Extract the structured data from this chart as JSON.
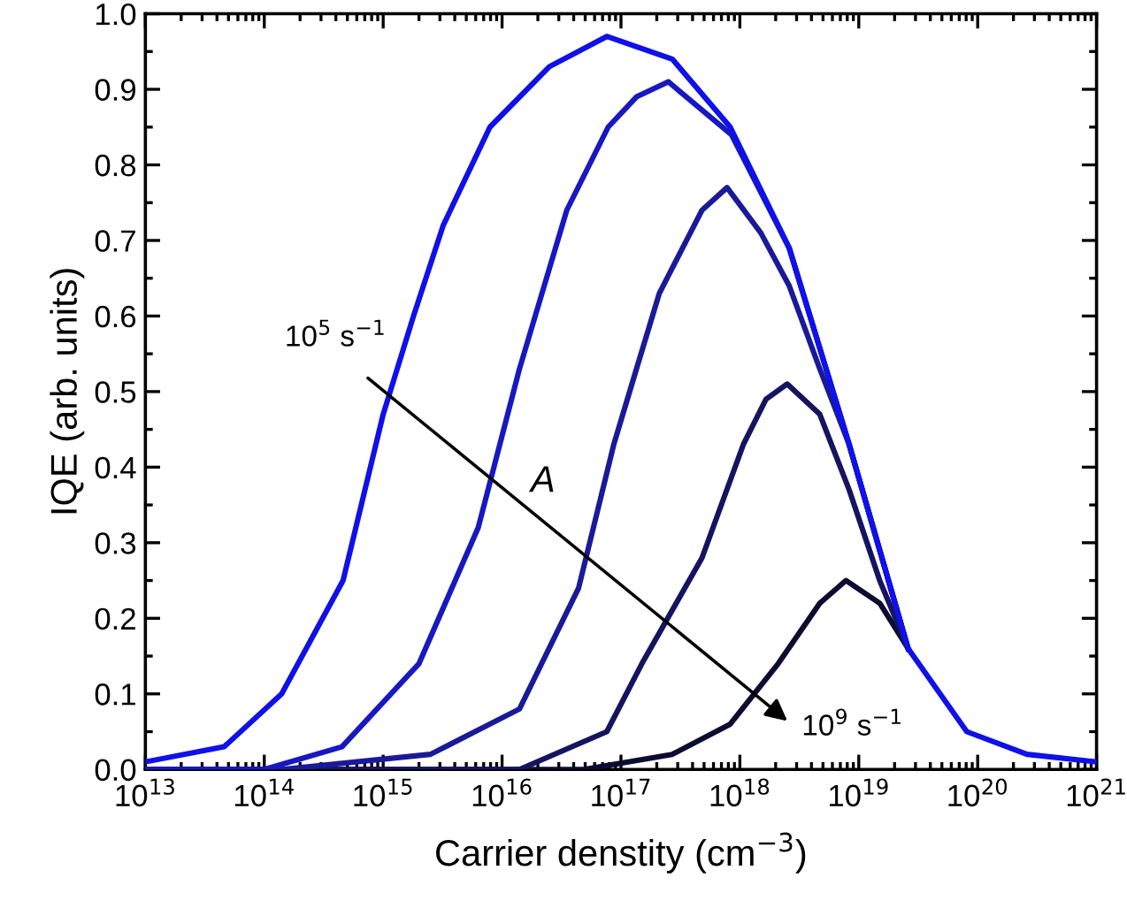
{
  "chart_data": {
    "type": "line",
    "xlabel": "Carrier denstity (cm$^{−3}$)",
    "ylabel": "IQE (arb. units)",
    "log": "x",
    "grid": false,
    "legend": false,
    "marker": "none",
    "line_style": "solid",
    "xlim": [
      10000000000000.0,
      1e+21
    ],
    "xticks": [
      {
        "value": 10000000000000.0,
        "label": "10$^{13}$"
      },
      {
        "value": 100000000000000.0,
        "label": "10$^{14}$"
      },
      {
        "value": 1000000000000000.0,
        "label": "10$^{15}$"
      },
      {
        "value": 1e+16,
        "label": "10$^{16}$"
      },
      {
        "value": 1e+17,
        "label": "10$^{17}$"
      },
      {
        "value": 1e+18,
        "label": "10$^{18}$"
      },
      {
        "value": 1e+19,
        "label": "10$^{19}$"
      },
      {
        "value": 1e+20,
        "label": "10$^{20}$"
      },
      {
        "value": 1e+21,
        "label": "10$^{21}$"
      }
    ],
    "ylim": [
      0,
      1.0
    ],
    "yticks": [
      {
        "value": 0,
        "label": "0.0"
      },
      {
        "value": 0.1,
        "label": "0.1"
      },
      {
        "value": 0.2,
        "label": "0.2"
      },
      {
        "value": 0.3,
        "label": "0.3"
      },
      {
        "value": 0.4,
        "label": "0.4"
      },
      {
        "value": 0.5,
        "label": "0.5"
      },
      {
        "value": 0.6,
        "label": "0.6"
      },
      {
        "value": 0.7,
        "label": "0.7"
      },
      {
        "value": 0.8,
        "label": "0.8"
      },
      {
        "value": 0.9,
        "label": "0.9"
      },
      {
        "value": 1.0,
        "label": "1.0"
      }
    ],
    "annotations": [
      "10$^{5}$ s$^{−1}$",
      "A",
      "10$^{9}$ s$^{−1}$"
    ],
    "series": [
      {
        "color": "#1010e8",
        "x": [
          10000000000000.0,
          46000000000000.0,
          140000000000000.0,
          460000000000000.0,
          1000000000000000.0,
          1800000000000000.0,
          3200000000000000.0,
          7900000000000000.0,
          2.5e+16,
          7.6e+16,
          2.7e+17,
          8.3e+17,
          2.6e+18,
          8.3e+18,
          2.6e+19,
          8.1e+19,
          2.6e+20,
          1e+21
        ],
        "values": [
          0.01,
          0.03,
          0.1,
          0.25,
          0.47,
          0.6,
          0.72,
          0.85,
          0.93,
          0.97,
          0.94,
          0.85,
          0.69,
          0.43,
          0.16,
          0.05,
          0.02,
          0.01
        ]
      },
      {
        "color": "#1818c0",
        "x": [
          10000000000000.0,
          100000000000000.0,
          450000000000000.0,
          2000000000000000.0,
          6300000000000000.0,
          1.4e+16,
          3.5e+16,
          7.8e+16,
          1.35e+17,
          2.5e+17,
          8.5e+17,
          2.6e+18,
          8.3e+18,
          2.6e+19
        ],
        "values": [
          0.0,
          0.0,
          0.03,
          0.14,
          0.32,
          0.53,
          0.74,
          0.85,
          0.89,
          0.91,
          0.84,
          0.69,
          0.43,
          0.16
        ]
      },
      {
        "color": "#1a1a98",
        "x": [
          10000000000000.0,
          140000000000000.0,
          2500000000000000.0,
          1.4e+16,
          4.4e+16,
          8.7e+16,
          1.35e+17,
          2.1e+17,
          4.8e+17,
          7.8e+17,
          1.5e+18,
          2.6e+18,
          4.7e+18,
          8.3e+18,
          2.6e+19
        ],
        "values": [
          0.0,
          0.0,
          0.02,
          0.08,
          0.24,
          0.43,
          0.53,
          0.63,
          0.74,
          0.77,
          0.71,
          0.64,
          0.53,
          0.43,
          0.16
        ]
      },
      {
        "color": "#141460",
        "x": [
          10000000000000.0,
          1.4e+16,
          7.6e+16,
          1.5e+17,
          4.8e+17,
          1.07e+18,
          1.66e+18,
          2.5e+18,
          4.7e+18,
          8.3e+18,
          1.5e+19,
          2.6e+19
        ],
        "values": [
          0.0,
          0.0,
          0.05,
          0.14,
          0.28,
          0.43,
          0.49,
          0.51,
          0.47,
          0.37,
          0.25,
          0.16
        ]
      },
      {
        "color": "#0c0c30",
        "x": [
          10000000000000.0,
          4.9e+16,
          2.7e+17,
          8.3e+17,
          2.1e+18,
          4.7e+18,
          7.8e+18,
          1.5e+19,
          2.6e+19
        ],
        "values": [
          0.0,
          0.0,
          0.02,
          0.06,
          0.14,
          0.22,
          0.25,
          0.22,
          0.16
        ]
      }
    ]
  }
}
